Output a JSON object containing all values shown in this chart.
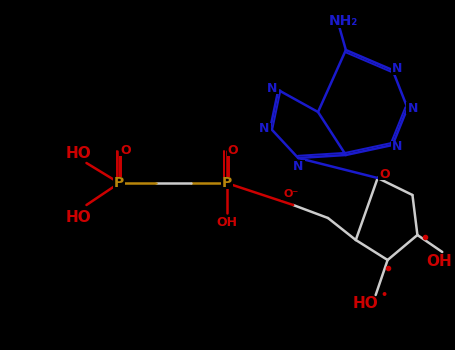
{
  "bg": "#000000",
  "nc": "#1a1acc",
  "oc": "#cc0000",
  "pc": "#b8860b",
  "bc": "#cccccc",
  "lw": 1.8,
  "figsize": [
    4.55,
    3.5
  ],
  "dpi": 100,
  "xlim": [
    0,
    455
  ],
  "ylim": [
    0,
    350
  ]
}
